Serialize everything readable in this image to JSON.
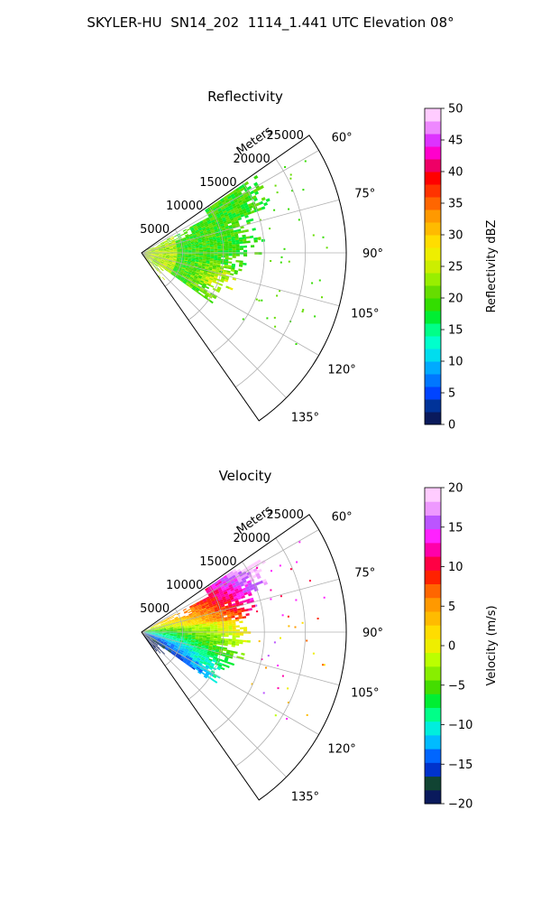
{
  "figure_title": "SKYLER-HU  SN14_202  1114_1.441 UTC Elevation 08°",
  "chart_data": [
    {
      "type": "polar_ppi",
      "title": "Reflectivity",
      "radial_label": "Meters",
      "radial_ticks": [
        5000,
        10000,
        15000,
        20000,
        25000
      ],
      "radial_tick_labels": [
        "5000",
        "10000",
        "15000",
        "20000",
        "25000"
      ],
      "rmax": 25000,
      "angle_range_deg": [
        55,
        145
      ],
      "angle_ticks": [
        60,
        75,
        90,
        105,
        120,
        135
      ],
      "angle_tick_labels": [
        "60°",
        "75°",
        "90°",
        "105°",
        "120°",
        "135°"
      ],
      "grid": true,
      "colorbar": {
        "label": "Reflectivity dBZ",
        "min": 0,
        "max": 50,
        "ticks": [
          0,
          5,
          10,
          15,
          20,
          25,
          30,
          35,
          40,
          45,
          50
        ],
        "tick_labels": [
          "0",
          "5",
          "10",
          "15",
          "20",
          "25",
          "30",
          "35",
          "40",
          "45",
          "50"
        ],
        "colors": [
          "#0a1a5c",
          "#003399",
          "#0044ff",
          "#0077ff",
          "#00aaff",
          "#00ddee",
          "#00ffcc",
          "#00ff88",
          "#00ee33",
          "#33dd00",
          "#66dd00",
          "#99ee00",
          "#ccee00",
          "#eeee00",
          "#ffdd00",
          "#ffbb00",
          "#ff9900",
          "#ff6600",
          "#ff3300",
          "#ff0000",
          "#ee0066",
          "#ff00cc",
          "#dd33ff",
          "#ee88ff",
          "#ffccff"
        ]
      },
      "field": "reflectivity"
    },
    {
      "type": "polar_ppi",
      "title": "Velocity",
      "radial_label": "Meters",
      "radial_ticks": [
        5000,
        10000,
        15000,
        20000,
        25000
      ],
      "radial_tick_labels": [
        "5000",
        "10000",
        "15000",
        "20000",
        "25000"
      ],
      "rmax": 25000,
      "angle_range_deg": [
        55,
        145
      ],
      "angle_ticks": [
        60,
        75,
        90,
        105,
        120,
        135
      ],
      "angle_tick_labels": [
        "60°",
        "75°",
        "90°",
        "105°",
        "120°",
        "135°"
      ],
      "grid": true,
      "colorbar": {
        "label": "Velocity (m/s)",
        "min": -20,
        "max": 20,
        "ticks": [
          -20,
          -15,
          -10,
          -5,
          0,
          5,
          10,
          15,
          20
        ],
        "tick_labels": [
          "−20",
          "−15",
          "−10",
          "−5",
          "0",
          "5",
          "10",
          "15",
          "20"
        ],
        "colors": [
          "#0a1a5c",
          "#114433",
          "#0033cc",
          "#0066ff",
          "#00bbff",
          "#00eedd",
          "#00ff88",
          "#00ee33",
          "#44dd00",
          "#88ee00",
          "#bbff00",
          "#eeee00",
          "#ffdd00",
          "#ffbb00",
          "#ff9900",
          "#ff6600",
          "#ff2200",
          "#ff0044",
          "#ff00aa",
          "#ff22ff",
          "#bb55ff",
          "#ee99ff",
          "#ffccff"
        ]
      },
      "field": "velocity"
    }
  ]
}
